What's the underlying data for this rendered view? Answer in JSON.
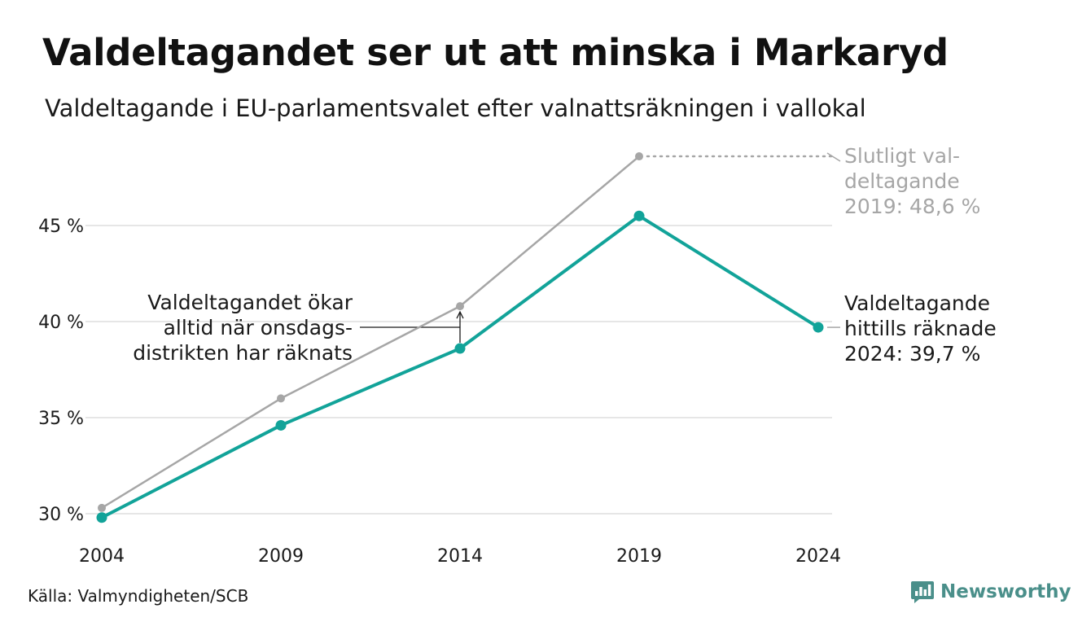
{
  "title": "Valdeltagandet ser ut att minska i Markaryd",
  "subtitle": "Valdeltagande i EU-parlamentsvalet efter valnattsräkningen i vallokal",
  "source": "Källa: Valmyndigheten/SCB",
  "brand": {
    "name": "Newsworthy",
    "icon": "newsworthy-logo-icon",
    "color": "#4a8f8a"
  },
  "chart_data": {
    "type": "line",
    "x": [
      2004,
      2009,
      2014,
      2019,
      2024
    ],
    "x_tick_labels": [
      "2004",
      "2009",
      "2014",
      "2019",
      "2024"
    ],
    "y_ticks": [
      30,
      35,
      40,
      45
    ],
    "y_tick_labels": [
      "30 %",
      "35 %",
      "40 %",
      "45 %"
    ],
    "ylim": [
      29.5,
      49
    ],
    "grid": true,
    "series": [
      {
        "id": "final",
        "color": "#a6a6a6",
        "x": [
          2004,
          2009,
          2014,
          2019
        ],
        "values": [
          30.3,
          36.0,
          40.8,
          48.6
        ]
      },
      {
        "id": "election-night",
        "color": "#12a399",
        "x": [
          2004,
          2009,
          2014,
          2019,
          2024
        ],
        "values": [
          29.8,
          34.6,
          38.6,
          45.5,
          39.7
        ]
      }
    ],
    "annotations": {
      "final_label": [
        "Slutligt val-",
        "deltagande",
        "2019: 48,6 %"
      ],
      "current_label": [
        "Valdeltagande",
        "hittills räknade",
        "2024: 39,7 %"
      ],
      "increase_note": [
        "Valdeltagandet ökar",
        "alltid när onsdags-",
        "distrikten har räknats"
      ]
    }
  }
}
